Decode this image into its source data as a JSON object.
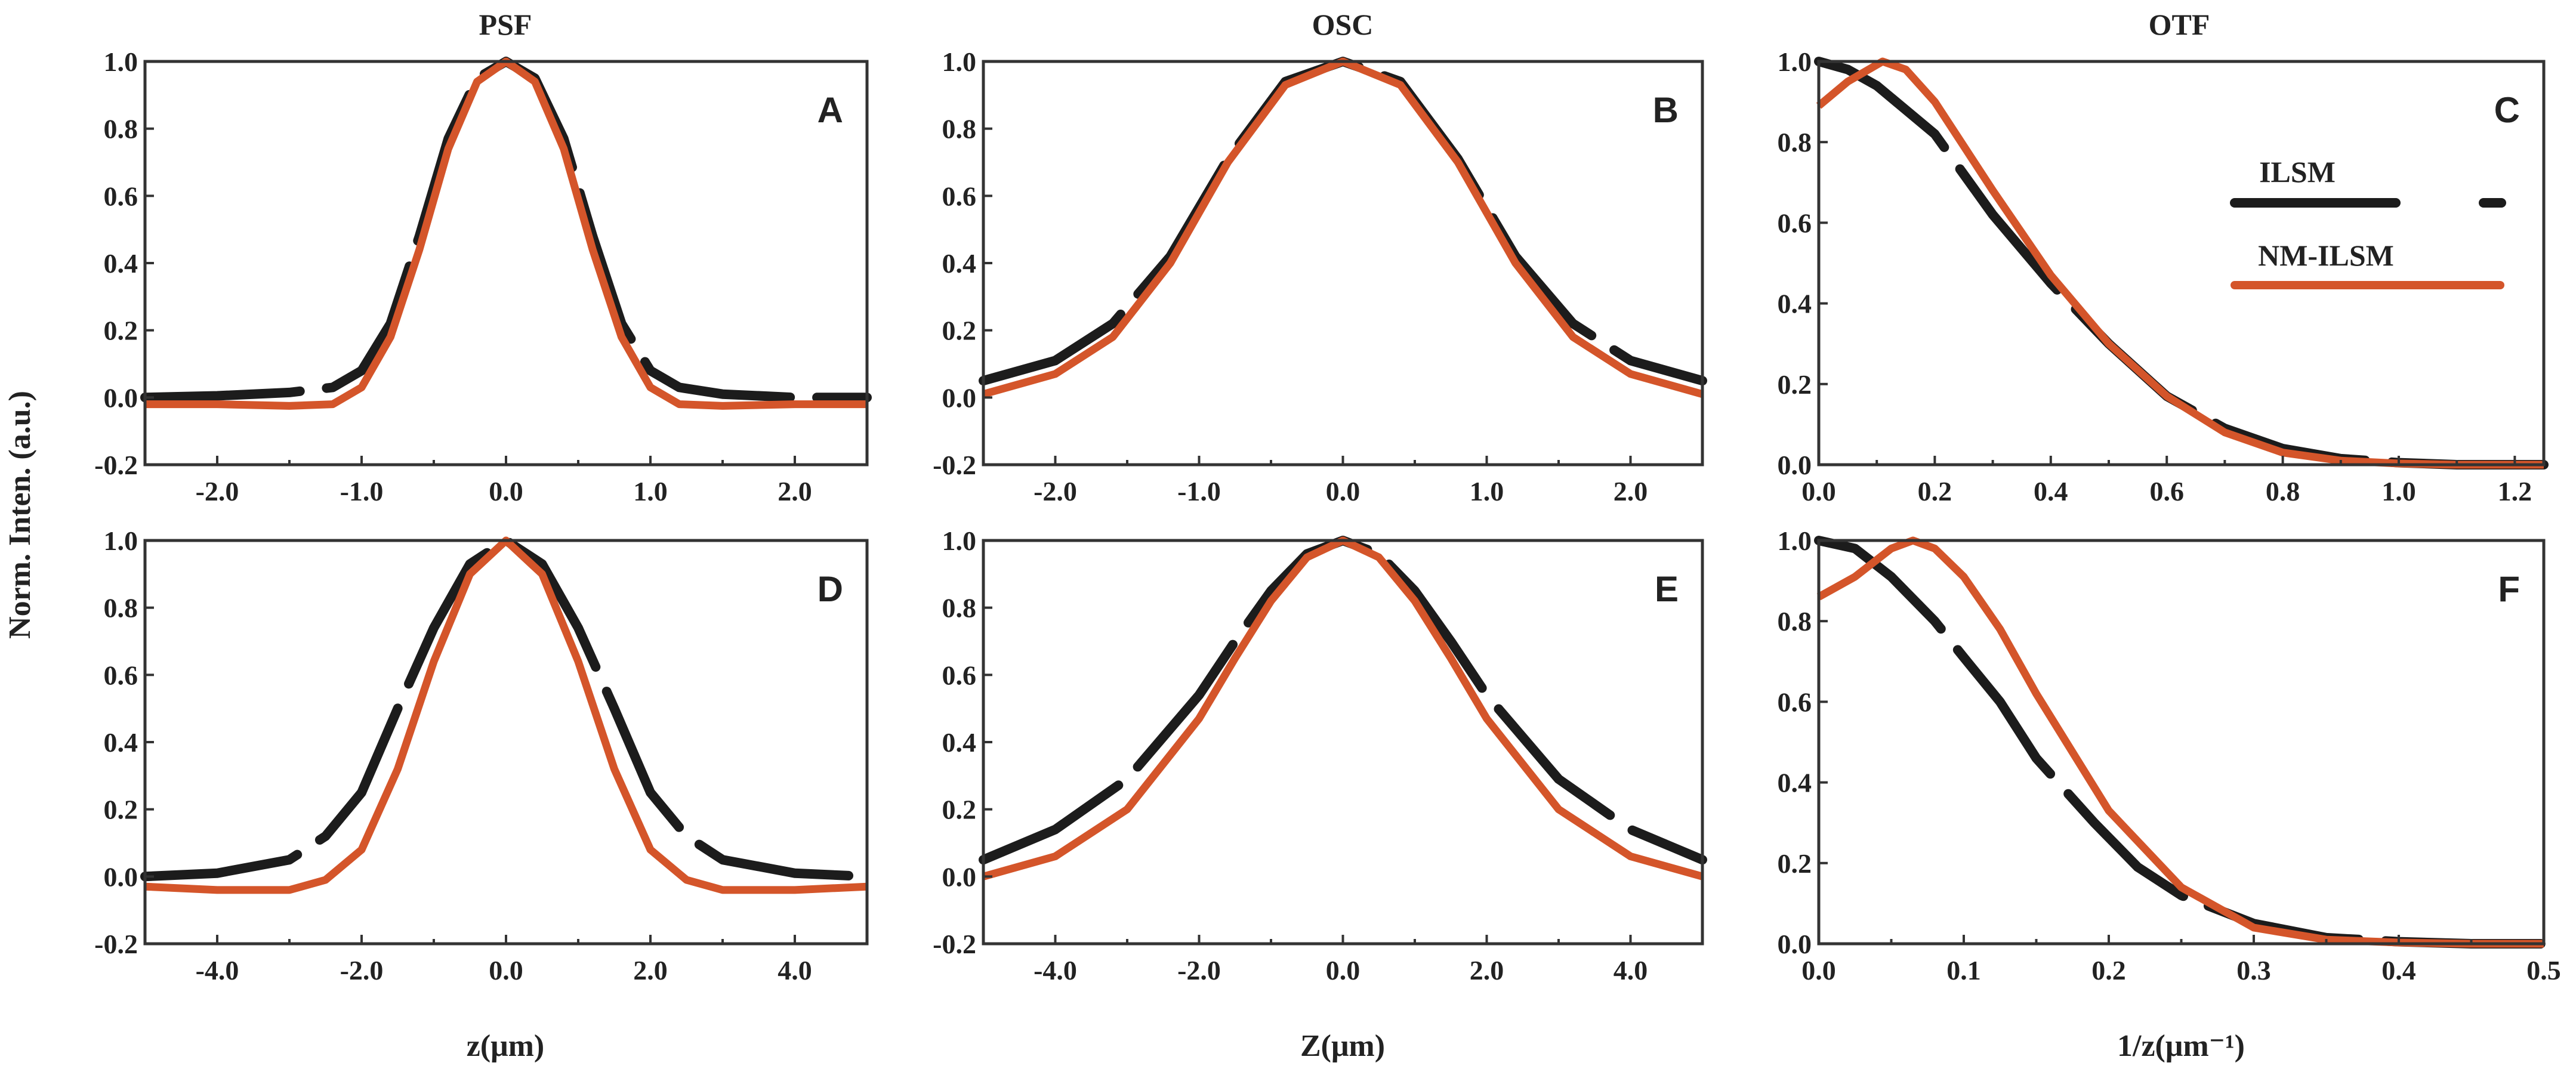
{
  "figure": {
    "column_titles": [
      "PSF",
      "OSC",
      "OTF"
    ],
    "ylabel": "Norm. Inten. (a.u.)",
    "xlabels": [
      "z(μm)",
      "Z(μm)",
      "1/z(μm⁻¹)"
    ],
    "legend": {
      "ilsm": "ILSM",
      "nm_ilsm": "NM-ILSM"
    },
    "colors": {
      "ilsm": "#1c1c1c",
      "nm_ilsm": "#d4552a",
      "axes": "#333333"
    }
  },
  "chart_data": [
    {
      "panel": "A",
      "type": "line",
      "title": "PSF",
      "xlabel": "",
      "ylabel": "Norm. Inten. (a.u.)",
      "xlim": [
        -2.5,
        2.5
      ],
      "ylim": [
        -0.2,
        1.0
      ],
      "xticks": [
        -2.0,
        -1.0,
        0.0,
        1.0,
        2.0
      ],
      "xtick_labels": [
        "-2.0",
        "-1.0",
        "0.0",
        "1.0",
        "2.0"
      ],
      "yticks": [
        -0.2,
        0.0,
        0.2,
        0.4,
        0.6,
        0.8,
        1.0
      ],
      "ytick_labels": [
        "-0.2",
        "0.0",
        "0.2",
        "0.4",
        "0.6",
        "0.8",
        "1.0"
      ],
      "series": [
        {
          "name": "ILSM",
          "style": "dashed",
          "color": "#1c1c1c",
          "x": [
            -2.5,
            -2.0,
            -1.5,
            -1.2,
            -1.0,
            -0.8,
            -0.6,
            -0.4,
            -0.2,
            0.0,
            0.2,
            0.4,
            0.6,
            0.8,
            1.0,
            1.2,
            1.5,
            2.0,
            2.5
          ],
          "y": [
            0.0,
            0.005,
            0.015,
            0.03,
            0.08,
            0.22,
            0.48,
            0.77,
            0.95,
            1.0,
            0.95,
            0.77,
            0.48,
            0.22,
            0.08,
            0.03,
            0.01,
            0.0,
            0.0
          ]
        },
        {
          "name": "NM-ILSM",
          "style": "solid",
          "color": "#d4552a",
          "x": [
            -2.5,
            -2.0,
            -1.5,
            -1.2,
            -1.0,
            -0.8,
            -0.6,
            -0.4,
            -0.2,
            0.0,
            0.2,
            0.4,
            0.6,
            0.8,
            1.0,
            1.2,
            1.5,
            2.0,
            2.5
          ],
          "y": [
            -0.02,
            -0.02,
            -0.025,
            -0.02,
            0.03,
            0.18,
            0.44,
            0.74,
            0.94,
            1.0,
            0.94,
            0.74,
            0.44,
            0.18,
            0.03,
            -0.02,
            -0.025,
            -0.02,
            -0.02
          ]
        }
      ]
    },
    {
      "panel": "B",
      "type": "line",
      "title": "OSC",
      "xlabel": "",
      "ylabel": "",
      "xlim": [
        -2.5,
        2.5
      ],
      "ylim": [
        -0.2,
        1.0
      ],
      "xticks": [
        -2.0,
        -1.0,
        0.0,
        1.0,
        2.0
      ],
      "xtick_labels": [
        "-2.0",
        "-1.0",
        "0.0",
        "1.0",
        "2.0"
      ],
      "yticks": [
        -0.2,
        0.0,
        0.2,
        0.4,
        0.6,
        0.8,
        1.0
      ],
      "ytick_labels": [
        "-0.2",
        "0.0",
        "0.2",
        "0.4",
        "0.6",
        "0.8",
        "1.0"
      ],
      "series": [
        {
          "name": "ILSM",
          "style": "dashed",
          "color": "#1c1c1c",
          "x": [
            -2.5,
            -2.0,
            -1.6,
            -1.2,
            -0.8,
            -0.4,
            0.0,
            0.4,
            0.8,
            1.2,
            1.6,
            2.0,
            2.5
          ],
          "y": [
            0.05,
            0.11,
            0.22,
            0.42,
            0.71,
            0.94,
            1.0,
            0.94,
            0.71,
            0.42,
            0.22,
            0.11,
            0.05
          ]
        },
        {
          "name": "NM-ILSM",
          "style": "solid",
          "color": "#d4552a",
          "x": [
            -2.5,
            -2.0,
            -1.6,
            -1.2,
            -0.8,
            -0.4,
            0.0,
            0.4,
            0.8,
            1.2,
            1.6,
            2.0,
            2.5
          ],
          "y": [
            0.01,
            0.07,
            0.18,
            0.4,
            0.7,
            0.93,
            1.0,
            0.93,
            0.7,
            0.4,
            0.18,
            0.07,
            0.01
          ]
        }
      ]
    },
    {
      "panel": "C",
      "type": "line",
      "title": "OTF",
      "xlabel": "",
      "ylabel": "",
      "xlim": [
        0.0,
        1.25
      ],
      "ylim": [
        0.0,
        1.0
      ],
      "xticks": [
        0.0,
        0.2,
        0.4,
        0.6,
        0.8,
        1.0,
        1.2
      ],
      "xtick_labels": [
        "0.0",
        "0.2",
        "0.4",
        "0.6",
        "0.8",
        "1.0",
        "1.2"
      ],
      "yticks": [
        0.0,
        0.2,
        0.4,
        0.6,
        0.8,
        1.0
      ],
      "ytick_labels": [
        "0.0",
        "0.2",
        "0.4",
        "0.6",
        "0.8",
        "1.0"
      ],
      "series": [
        {
          "name": "ILSM",
          "style": "dashed",
          "color": "#1c1c1c",
          "x": [
            0.0,
            0.05,
            0.1,
            0.2,
            0.3,
            0.4,
            0.5,
            0.6,
            0.7,
            0.8,
            0.9,
            1.0,
            1.1,
            1.25
          ],
          "y": [
            1.0,
            0.98,
            0.94,
            0.82,
            0.62,
            0.45,
            0.3,
            0.17,
            0.09,
            0.04,
            0.015,
            0.005,
            0.0,
            0.0
          ]
        },
        {
          "name": "NM-ILSM",
          "style": "solid",
          "color": "#d4552a",
          "x": [
            0.0,
            0.05,
            0.11,
            0.15,
            0.2,
            0.3,
            0.4,
            0.5,
            0.6,
            0.7,
            0.8,
            0.9,
            1.0,
            1.1,
            1.25
          ],
          "y": [
            0.89,
            0.95,
            1.0,
            0.98,
            0.9,
            0.68,
            0.47,
            0.3,
            0.17,
            0.08,
            0.03,
            0.01,
            0.003,
            0.0,
            0.0
          ]
        }
      ]
    },
    {
      "panel": "D",
      "type": "line",
      "title": "",
      "xlabel": "z(μm)",
      "ylabel": "Norm. Inten. (a.u.)",
      "xlim": [
        -5.0,
        5.0
      ],
      "ylim": [
        -0.2,
        1.0
      ],
      "xticks": [
        -4.0,
        -2.0,
        0.0,
        2.0,
        4.0
      ],
      "xtick_labels": [
        "-4.0",
        "-2.0",
        "0.0",
        "2.0",
        "4.0"
      ],
      "yticks": [
        -0.2,
        0.0,
        0.2,
        0.4,
        0.6,
        0.8,
        1.0
      ],
      "ytick_labels": [
        "-0.2",
        "0.0",
        "0.2",
        "0.4",
        "0.6",
        "0.8",
        "1.0"
      ],
      "series": [
        {
          "name": "ILSM",
          "style": "dashed",
          "color": "#1c1c1c",
          "x": [
            -5.0,
            -4.0,
            -3.0,
            -2.5,
            -2.0,
            -1.5,
            -1.0,
            -0.5,
            0.0,
            0.5,
            1.0,
            1.5,
            2.0,
            2.5,
            3.0,
            4.0,
            5.0
          ],
          "y": [
            0.0,
            0.01,
            0.05,
            0.12,
            0.25,
            0.5,
            0.74,
            0.93,
            1.0,
            0.93,
            0.74,
            0.5,
            0.25,
            0.12,
            0.05,
            0.01,
            0.0
          ]
        },
        {
          "name": "NM-ILSM",
          "style": "solid",
          "color": "#d4552a",
          "x": [
            -5.0,
            -4.0,
            -3.0,
            -2.5,
            -2.0,
            -1.5,
            -1.0,
            -0.5,
            0.0,
            0.5,
            1.0,
            1.5,
            2.0,
            2.5,
            3.0,
            4.0,
            5.0
          ],
          "y": [
            -0.03,
            -0.04,
            -0.04,
            -0.01,
            0.08,
            0.32,
            0.64,
            0.9,
            1.0,
            0.9,
            0.64,
            0.32,
            0.08,
            -0.01,
            -0.04,
            -0.04,
            -0.03
          ]
        }
      ]
    },
    {
      "panel": "E",
      "type": "line",
      "title": "",
      "xlabel": "Z(μm)",
      "ylabel": "",
      "xlim": [
        -5.0,
        5.0
      ],
      "ylim": [
        -0.2,
        1.0
      ],
      "xticks": [
        -4.0,
        -2.0,
        0.0,
        2.0,
        4.0
      ],
      "xtick_labels": [
        "-4.0",
        "-2.0",
        "0.0",
        "2.0",
        "4.0"
      ],
      "yticks": [
        -0.2,
        0.0,
        0.2,
        0.4,
        0.6,
        0.8,
        1.0
      ],
      "ytick_labels": [
        "-0.2",
        "0.0",
        "0.2",
        "0.4",
        "0.6",
        "0.8",
        "1.0"
      ],
      "series": [
        {
          "name": "ILSM",
          "style": "dashed",
          "color": "#1c1c1c",
          "x": [
            -5.0,
            -4.0,
            -3.0,
            -2.0,
            -1.5,
            -1.0,
            -0.5,
            0.0,
            0.5,
            1.0,
            1.5,
            2.0,
            3.0,
            4.0,
            5.0
          ],
          "y": [
            0.05,
            0.14,
            0.29,
            0.54,
            0.7,
            0.85,
            0.96,
            1.0,
            0.96,
            0.85,
            0.7,
            0.54,
            0.29,
            0.14,
            0.05
          ]
        },
        {
          "name": "NM-ILSM",
          "style": "solid",
          "color": "#d4552a",
          "x": [
            -5.0,
            -4.0,
            -3.0,
            -2.0,
            -1.5,
            -1.0,
            -0.5,
            0.0,
            0.5,
            1.0,
            1.5,
            2.0,
            3.0,
            4.0,
            5.0
          ],
          "y": [
            0.0,
            0.06,
            0.2,
            0.47,
            0.65,
            0.82,
            0.95,
            1.0,
            0.95,
            0.82,
            0.65,
            0.47,
            0.2,
            0.06,
            0.0
          ]
        }
      ]
    },
    {
      "panel": "F",
      "type": "line",
      "title": "",
      "xlabel": "1/z(μm⁻¹)",
      "ylabel": "",
      "xlim": [
        0.0,
        0.5
      ],
      "ylim": [
        0.0,
        1.0
      ],
      "xticks": [
        0.0,
        0.1,
        0.2,
        0.3,
        0.4,
        0.5
      ],
      "xtick_labels": [
        "0.0",
        "0.1",
        "0.2",
        "0.3",
        "0.4",
        "0.5"
      ],
      "yticks": [
        0.0,
        0.2,
        0.4,
        0.6,
        0.8,
        1.0
      ],
      "ytick_labels": [
        "0.0",
        "0.2",
        "0.4",
        "0.6",
        "0.8",
        "1.0"
      ],
      "series": [
        {
          "name": "ILSM",
          "style": "dashed",
          "color": "#1c1c1c",
          "x": [
            0.0,
            0.025,
            0.05,
            0.08,
            0.1,
            0.125,
            0.15,
            0.19,
            0.22,
            0.25,
            0.3,
            0.35,
            0.4,
            0.45,
            0.5
          ],
          "y": [
            1.0,
            0.98,
            0.91,
            0.8,
            0.71,
            0.6,
            0.46,
            0.3,
            0.19,
            0.12,
            0.05,
            0.015,
            0.005,
            0.0,
            0.0
          ]
        },
        {
          "name": "NM-ILSM",
          "style": "solid",
          "color": "#d4552a",
          "x": [
            0.0,
            0.025,
            0.05,
            0.065,
            0.08,
            0.1,
            0.125,
            0.15,
            0.2,
            0.25,
            0.3,
            0.35,
            0.4,
            0.45,
            0.5
          ],
          "y": [
            0.86,
            0.91,
            0.98,
            1.0,
            0.98,
            0.91,
            0.78,
            0.62,
            0.33,
            0.14,
            0.04,
            0.01,
            0.003,
            0.0,
            0.0
          ]
        }
      ]
    }
  ]
}
